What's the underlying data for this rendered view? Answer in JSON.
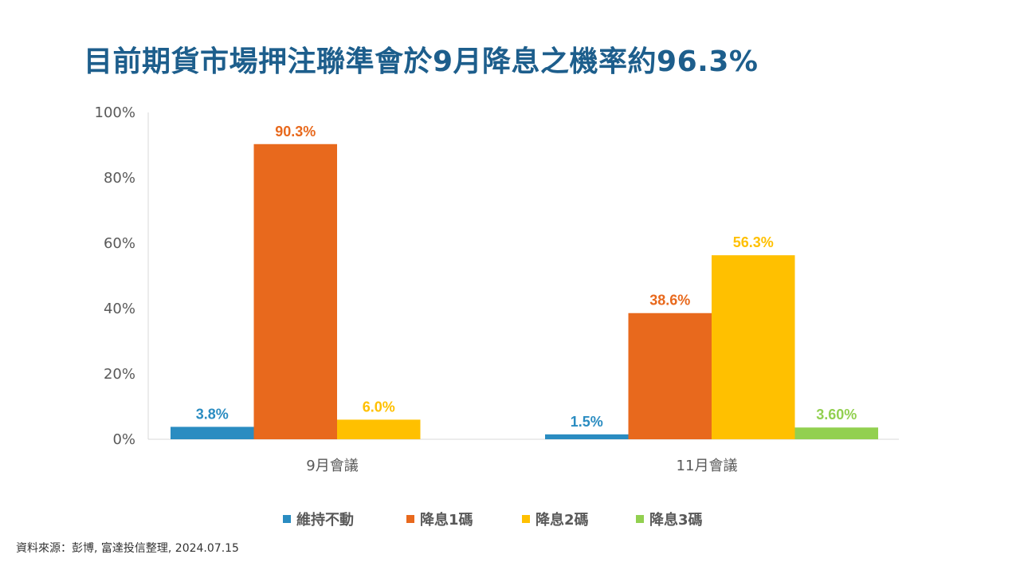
{
  "title": "目前期貨市場押注聯準會於9月降息之機率約96.3%",
  "source": "資料來源：彭博, 富達投信整理, 2024.07.15",
  "chart_data": {
    "type": "bar",
    "categories": [
      "9月會議",
      "11月會議"
    ],
    "series": [
      {
        "name": "維持不動",
        "color": "#2a8cc1",
        "values": [
          3.8,
          1.5
        ],
        "labels": [
          "3.8%",
          "1.5%"
        ]
      },
      {
        "name": "降息1碼",
        "color": "#e8691d",
        "values": [
          90.3,
          38.6
        ],
        "labels": [
          "90.3%",
          "38.6%"
        ]
      },
      {
        "name": "降息2碼",
        "color": "#ffc000",
        "values": [
          6.0,
          56.3
        ],
        "labels": [
          "6.0%",
          "56.3%"
        ]
      },
      {
        "name": "降息3碼",
        "color": "#92d050",
        "values": [
          null,
          3.6
        ],
        "labels": [
          "",
          "3.60%"
        ]
      }
    ],
    "y_ticks": [
      "0%",
      "20%",
      "40%",
      "60%",
      "80%",
      "100%"
    ],
    "ylim": [
      0,
      100
    ],
    "legend_position": "bottom",
    "grid": false
  }
}
